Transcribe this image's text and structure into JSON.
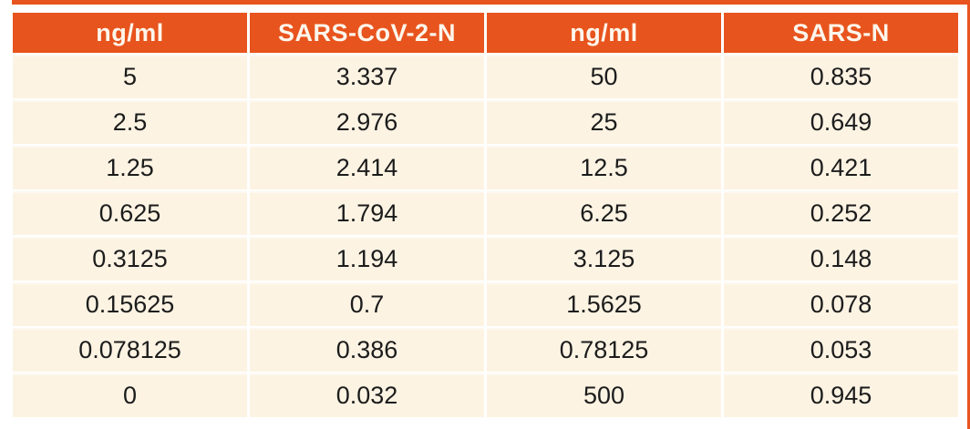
{
  "colors": {
    "accent_orange": "#e8541d",
    "header_bg": "#e8541d",
    "header_text": "#fdf6ec",
    "cell_bg": "#fcf3e3",
    "body_text": "#1c1c1c",
    "page_bg": "#ffffff"
  },
  "table": {
    "columns": [
      {
        "label": "ng/ml"
      },
      {
        "label": "SARS-CoV-2-N"
      },
      {
        "label": "ng/ml"
      },
      {
        "label": "SARS-N"
      }
    ],
    "rows": [
      [
        "5",
        "3.337",
        "50",
        "0.835"
      ],
      [
        "2.5",
        "2.976",
        "25",
        "0.649"
      ],
      [
        "1.25",
        "2.414",
        "12.5",
        "0.421"
      ],
      [
        "0.625",
        "1.794",
        "6.25",
        "0.252"
      ],
      [
        "0.3125",
        "1.194",
        "3.125",
        "0.148"
      ],
      [
        "0.15625",
        "0.7",
        "1.5625",
        "0.078"
      ],
      [
        "0.078125",
        "0.386",
        "0.78125",
        "0.053"
      ],
      [
        "0",
        "0.032",
        "500",
        "0.945"
      ]
    ]
  },
  "chart_data": {
    "type": "table",
    "columns": [
      "ng/ml",
      "SARS-CoV-2-N",
      "ng/ml",
      "SARS-N"
    ],
    "rows": [
      [
        "5",
        "3.337",
        "50",
        "0.835"
      ],
      [
        "2.5",
        "2.976",
        "25",
        "0.649"
      ],
      [
        "1.25",
        "2.414",
        "12.5",
        "0.421"
      ],
      [
        "0.625",
        "1.794",
        "6.25",
        "0.252"
      ],
      [
        "0.3125",
        "1.194",
        "3.125",
        "0.148"
      ],
      [
        "0.15625",
        "0.7",
        "1.5625",
        "0.078"
      ],
      [
        "0.078125",
        "0.386",
        "0.78125",
        "0.053"
      ],
      [
        "0",
        "0.032",
        "500",
        "0.945"
      ]
    ],
    "series": [
      {
        "name": "SARS-CoV-2-N",
        "concentration_ng_ml": [
          5,
          2.5,
          1.25,
          0.625,
          0.3125,
          0.15625,
          0.078125,
          0
        ],
        "values": [
          3.337,
          2.976,
          2.414,
          1.794,
          1.194,
          0.7,
          0.386,
          0.032
        ]
      },
      {
        "name": "SARS-N",
        "concentration_ng_ml": [
          50,
          25,
          12.5,
          6.25,
          3.125,
          1.5625,
          0.78125,
          500
        ],
        "values": [
          0.835,
          0.649,
          0.421,
          0.252,
          0.148,
          0.078,
          0.053,
          0.945
        ]
      }
    ]
  }
}
